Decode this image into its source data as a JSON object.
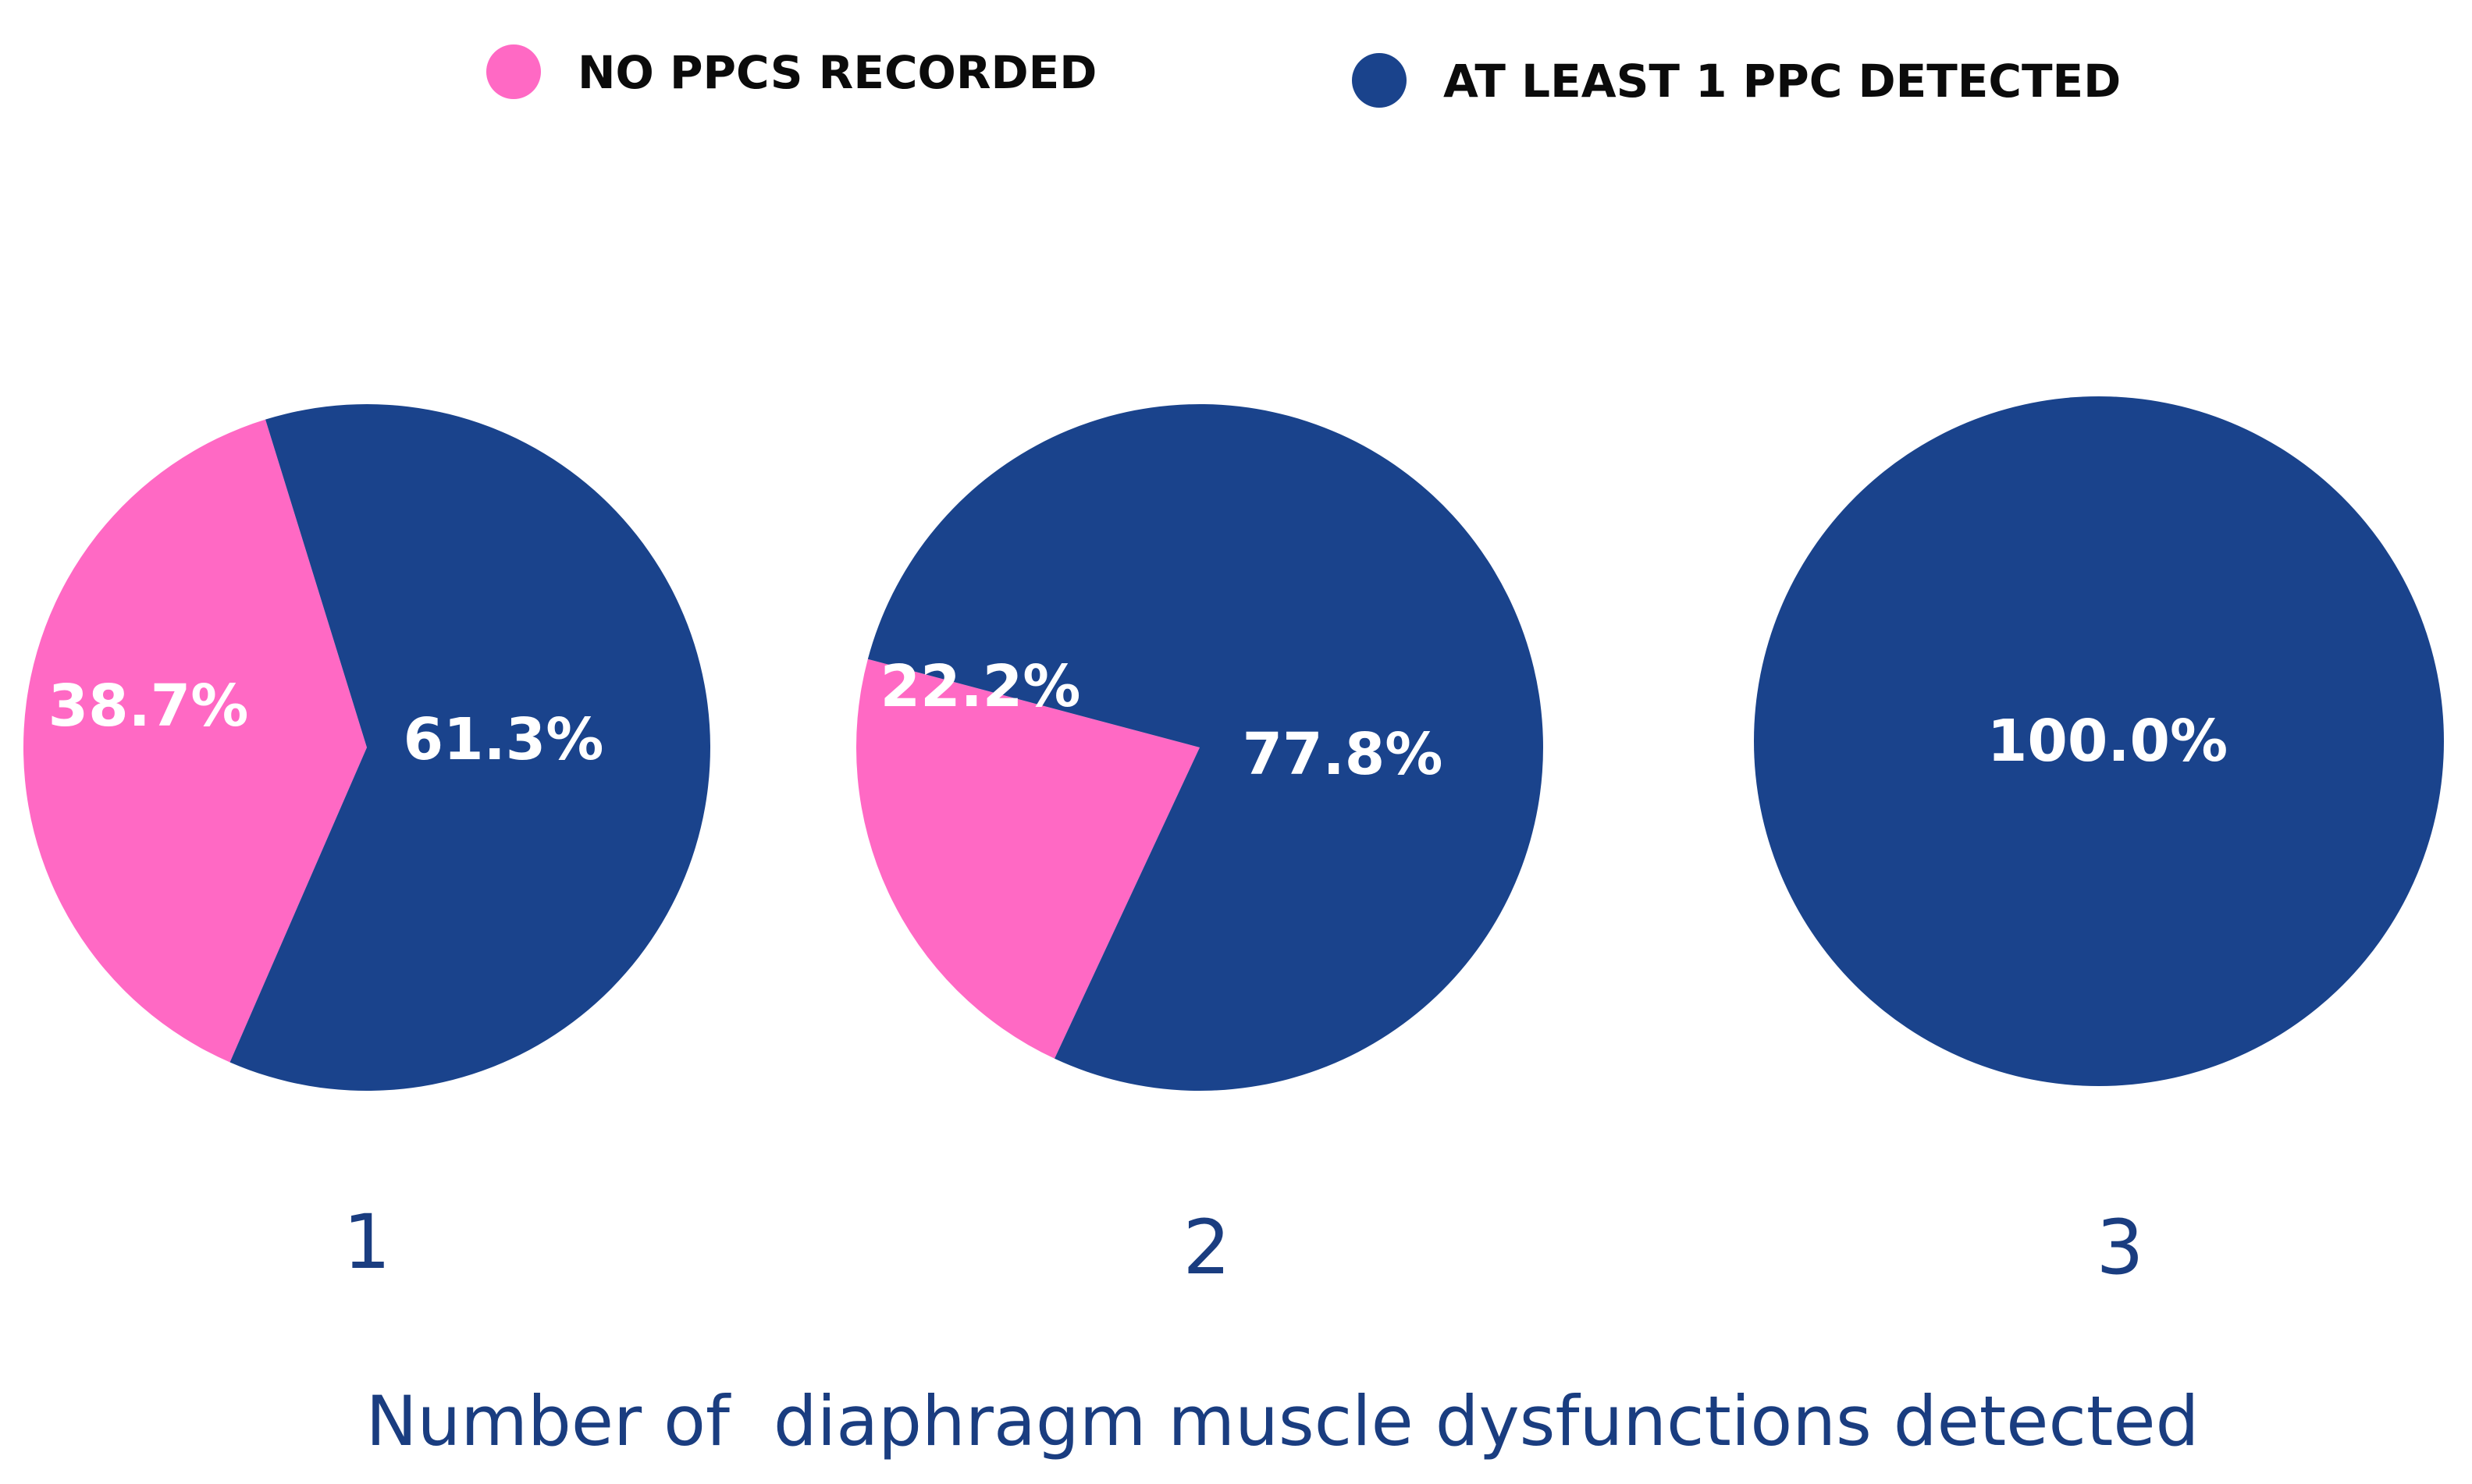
{
  "chart_data": {
    "type": "pie",
    "title": "",
    "xlabel": "Number of  diaphragm muscle dysfunctions detected",
    "legend": [
      {
        "name": "NO PPCS RECORDED",
        "color": "#ff69c4"
      },
      {
        "name": "AT LEAST 1 PPC DETECTED",
        "color": "#1a438c"
      }
    ],
    "legend_position": "top",
    "charts": [
      {
        "category": "1",
        "slices": [
          {
            "series": "NO PPCS RECORDED",
            "value": 38.7,
            "label": "38.7%"
          },
          {
            "series": "AT LEAST 1 PPC DETECTED",
            "value": 61.3,
            "label": "61.3%"
          }
        ]
      },
      {
        "category": "2",
        "slices": [
          {
            "series": "NO PPCS RECORDED",
            "value": 22.2,
            "label": "22.2%"
          },
          {
            "series": "AT LEAST 1 PPC DETECTED",
            "value": 77.8,
            "label": "77.8%"
          }
        ]
      },
      {
        "category": "3",
        "slices": [
          {
            "series": "NO PPCS RECORDED",
            "value": 0,
            "label": ""
          },
          {
            "series": "AT LEAST 1 PPC DETECTED",
            "value": 100.0,
            "label": "100.0%"
          }
        ]
      }
    ]
  }
}
